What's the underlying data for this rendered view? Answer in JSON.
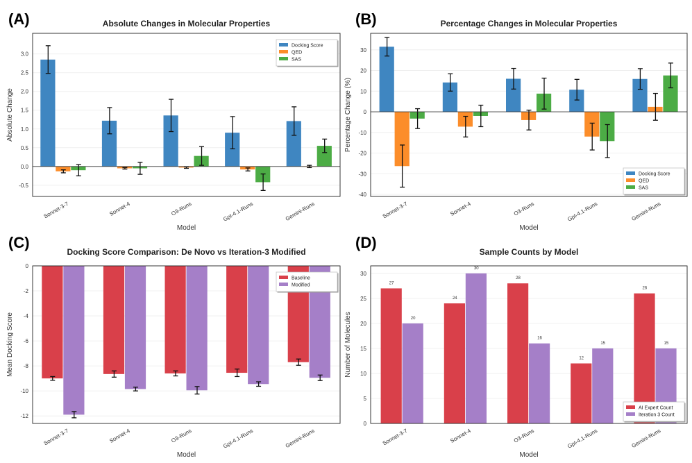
{
  "colors": {
    "docking": "#3f86c1",
    "qed": "#fc8d2a",
    "sas": "#4cac45",
    "red": "#d9404a",
    "purple": "#a57fc8"
  },
  "chart_data": [
    {
      "panel": "(A)",
      "type": "bar",
      "title": "Absolute Changes in Molecular Properties",
      "xlabel": "Model",
      "ylabel": "Absolute Change",
      "categories": [
        "Sonnet-3-7",
        "Sonnet-4",
        "O3-Runs",
        "Gpt-4.1-Runs",
        "Gemini-Runs"
      ],
      "ylim": [
        -0.8,
        3.55
      ],
      "yticks": [
        -0.5,
        0.0,
        0.5,
        1.0,
        1.5,
        2.0,
        2.5,
        3.0
      ],
      "tick_decimals": 1,
      "legend_position": "top-right",
      "series": [
        {
          "name": "Docking Score",
          "color_key": "docking",
          "values": [
            2.85,
            1.22,
            1.36,
            0.9,
            1.21
          ],
          "errors": [
            0.37,
            0.35,
            0.43,
            0.43,
            0.38
          ]
        },
        {
          "name": "QED",
          "color_key": "qed",
          "values": [
            -0.13,
            -0.05,
            -0.03,
            -0.08,
            -0.0
          ],
          "errors": [
            0.04,
            0.02,
            0.02,
            0.04,
            0.03
          ]
        },
        {
          "name": "SAS",
          "color_key": "sas",
          "values": [
            -0.1,
            -0.05,
            0.28,
            -0.42,
            0.55
          ],
          "errors": [
            0.15,
            0.16,
            0.25,
            0.22,
            0.18
          ]
        }
      ]
    },
    {
      "panel": "(B)",
      "type": "bar",
      "title": "Percentage Changes in Molecular Properties",
      "xlabel": "Model",
      "ylabel": "Percentage Change (%)",
      "categories": [
        "Sonnet-3-7",
        "Sonnet-4",
        "O3-Runs",
        "Gpt-4.1-Runs",
        "Gemini-Runs"
      ],
      "ylim": [
        -41,
        38
      ],
      "yticks": [
        -40,
        -30,
        -20,
        -10,
        0,
        10,
        20,
        30
      ],
      "tick_decimals": 0,
      "legend_position": "bottom-right",
      "series": [
        {
          "name": "Docking Score",
          "color_key": "docking",
          "values": [
            31.5,
            14.2,
            16,
            10.7,
            15.9
          ],
          "errors": [
            4.5,
            4.2,
            5,
            5,
            5
          ]
        },
        {
          "name": "QED",
          "color_key": "qed",
          "values": [
            -26.3,
            -7.2,
            -4,
            -12,
            2.4
          ],
          "errors": [
            10.2,
            5,
            4.8,
            6.5,
            6.5
          ]
        },
        {
          "name": "SAS",
          "color_key": "sas",
          "values": [
            -3.3,
            -2,
            8.8,
            -14.2,
            17.6
          ],
          "errors": [
            4.8,
            5.2,
            7.5,
            8,
            6
          ]
        }
      ]
    },
    {
      "panel": "(C)",
      "type": "bar",
      "title": "Docking Score Comparison: De Novo vs Iteration-3 Modified",
      "xlabel": "Model",
      "ylabel": "Mean Docking Score",
      "categories": [
        "Sonnet-3-7",
        "Sonnet-4",
        "O3-Runs",
        "Gpt-4.1-Runs",
        "Gemini-Runs"
      ],
      "ylim": [
        -12.6,
        0
      ],
      "yticks": [
        -12,
        -10,
        -8,
        -6,
        -4,
        -2,
        0
      ],
      "tick_decimals": 0,
      "legend_position": "top-right",
      "series": [
        {
          "name": "Baseline",
          "color_key": "red",
          "values": [
            -9.0,
            -8.65,
            -8.6,
            -8.55,
            -7.7
          ],
          "errors": [
            0.15,
            0.25,
            0.2,
            0.3,
            0.25
          ]
        },
        {
          "name": "Modified",
          "color_key": "purple",
          "values": [
            -11.9,
            -9.85,
            -9.95,
            -9.45,
            -8.95
          ],
          "errors": [
            0.25,
            0.15,
            0.3,
            0.18,
            0.22
          ]
        }
      ]
    },
    {
      "panel": "(D)",
      "type": "bar",
      "title": "Sample Counts by Model",
      "xlabel": "Model",
      "ylabel": "Number of Molecules",
      "categories": [
        "Sonnet-3-7",
        "Sonnet-4",
        "O3-Runs",
        "Gpt-4.1-Runs",
        "Gemini-Runs"
      ],
      "ylim": [
        0,
        31.5
      ],
      "yticks": [
        0,
        5,
        10,
        15,
        20,
        25,
        30
      ],
      "tick_decimals": 0,
      "legend_position": "bottom-right",
      "show_value_labels": true,
      "series": [
        {
          "name": "AI Expert Count",
          "color_key": "red",
          "values": [
            27,
            24,
            28,
            12,
            26
          ]
        },
        {
          "name": "Iteration 3 Count",
          "color_key": "purple",
          "values": [
            20,
            30,
            16,
            15,
            15
          ]
        }
      ]
    }
  ]
}
